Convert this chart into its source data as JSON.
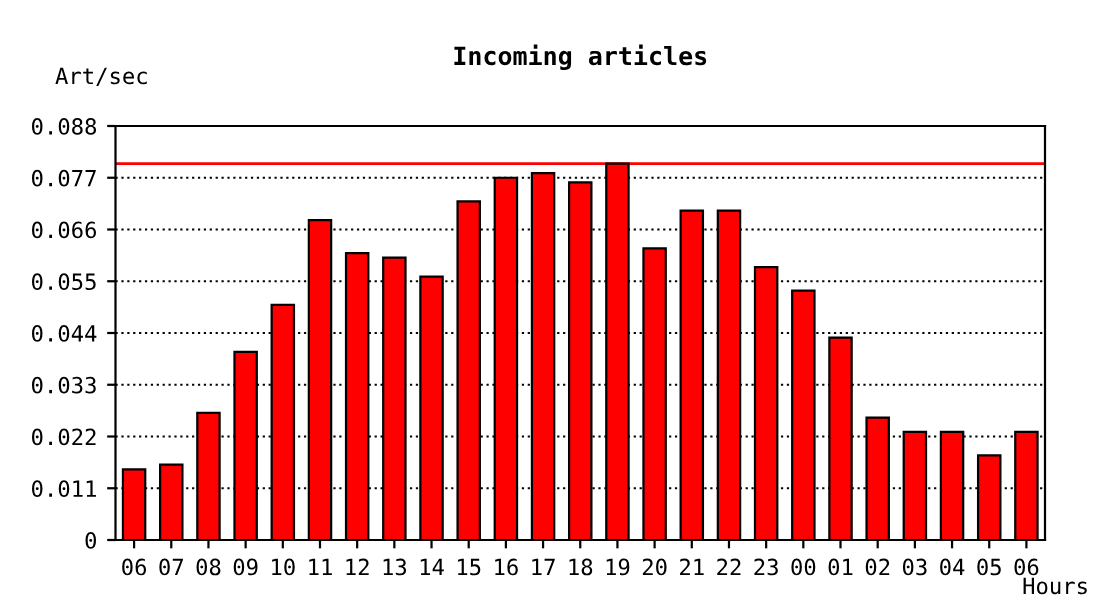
{
  "chart_data": {
    "type": "bar",
    "title": "Incoming articles",
    "ylabel": "Art/sec",
    "xlabel": "Hours",
    "categories": [
      "06",
      "07",
      "08",
      "09",
      "10",
      "11",
      "12",
      "13",
      "14",
      "15",
      "16",
      "17",
      "18",
      "19",
      "20",
      "21",
      "22",
      "23",
      "00",
      "01",
      "02",
      "03",
      "04",
      "05",
      "06"
    ],
    "series": [
      {
        "color": "#ff0000",
        "values": [
          0.015,
          0.016,
          0.027,
          0.04,
          0.05,
          0.068,
          0.061,
          0.06,
          0.056,
          0.072,
          0.077,
          0.078,
          0.076,
          0.08,
          0.062,
          0.07,
          0.07,
          0.058,
          0.053,
          0.043,
          0.026,
          0.023,
          0.023,
          0.018,
          0.023
        ]
      }
    ],
    "ylim": [
      0,
      0.088
    ],
    "yticks": [
      0,
      0.011,
      0.022,
      0.033,
      0.044,
      0.055,
      0.066,
      0.077,
      0.088
    ],
    "ref_lines": [
      {
        "axis": "y",
        "value": 0.08,
        "color": "#ff0000",
        "line_style": "solid"
      }
    ],
    "grid": "y",
    "line_style": "dotted",
    "legend": false
  }
}
